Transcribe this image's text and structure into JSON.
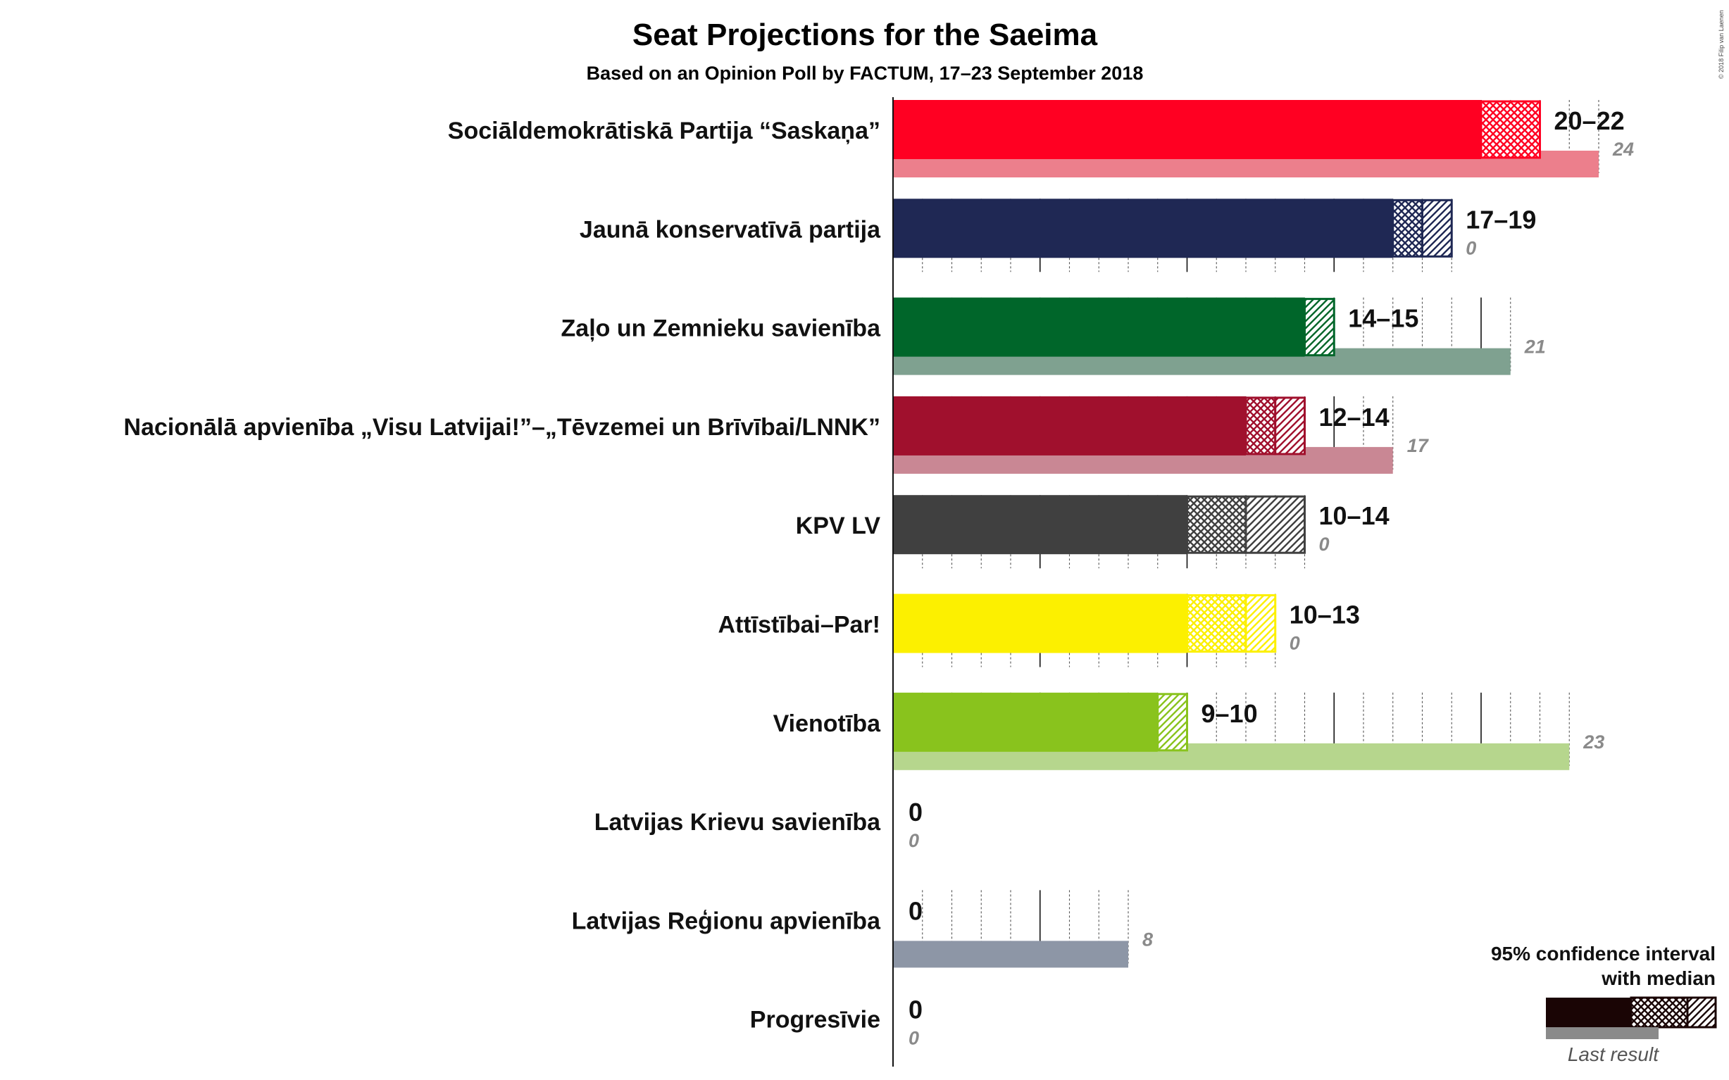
{
  "title": "Seat Projections for the Saeima",
  "subtitle": "Based on an Opinion Poll by FACTUM, 17–23 September 2018",
  "copyright": "© 2018 Filip van Laenen",
  "chart_data": {
    "type": "bar",
    "orientation": "horizontal",
    "title": "Seat Projections for the Saeima",
    "subtitle": "Based on an Opinion Poll by FACTUM, 17–23 September 2018",
    "xlim": [
      0,
      27
    ],
    "grid": true,
    "legend_position": "bottom-right",
    "series": [
      {
        "party": "Sociāldemokrātiskā Partija “Saskaņa”",
        "low": 20,
        "median": 22,
        "high": 22,
        "label": "20–22",
        "last_result": 24,
        "last_label": "24",
        "color": "#FF0022",
        "last_color": "#EC7F8C"
      },
      {
        "party": "Jaunā konservatīvā partija",
        "low": 17,
        "median": 18,
        "high": 19,
        "label": "17–19",
        "last_result": 0,
        "last_label": "0",
        "color": "#1F2854",
        "last_color": "#8F94AA"
      },
      {
        "party": "Zaļo un Zemnieku savienība",
        "low": 14,
        "median": 14,
        "high": 15,
        "label": "14–15",
        "last_result": 21,
        "last_label": "21",
        "color": "#00662A",
        "last_color": "#7FA190"
      },
      {
        "party": "Nacionālā apvienība „Visu Latvijai!”–„Tēvzemei un Brīvībai/LNNK”",
        "low": 12,
        "median": 13,
        "high": 14,
        "label": "12–14",
        "last_result": 17,
        "last_label": "17",
        "color": "#A0102D",
        "last_color": "#C98794"
      },
      {
        "party": "KPV LV",
        "low": 10,
        "median": 12,
        "high": 14,
        "label": "10–14",
        "last_result": 0,
        "last_label": "0",
        "color": "#404040",
        "last_color": "#9F9F9F"
      },
      {
        "party": "Attīstībai–Par!",
        "low": 10,
        "median": 12,
        "high": 13,
        "label": "10–13",
        "last_result": 0,
        "last_label": "0",
        "color": "#FCF000",
        "last_color": "#FDF77F"
      },
      {
        "party": "Vienotība",
        "low": 9,
        "median": 9,
        "high": 10,
        "label": "9–10",
        "last_result": 23,
        "last_label": "23",
        "color": "#89C31D",
        "last_color": "#B6D68D"
      },
      {
        "party": "Latvijas Krievu savienība",
        "low": 0,
        "median": 0,
        "high": 0,
        "label": "0",
        "last_result": 0,
        "last_label": "0",
        "color": "#888888",
        "last_color": "#BBBBBB"
      },
      {
        "party": "Latvijas Reģionu apvienība",
        "low": 0,
        "median": 0,
        "high": 0,
        "label": "0",
        "last_result": 8,
        "last_label": "8",
        "color": "#1C3055",
        "last_color": "#8D96A6"
      },
      {
        "party": "Progresīvie",
        "low": 0,
        "median": 0,
        "high": 0,
        "label": "0",
        "last_result": 0,
        "last_label": "0",
        "color": "#888888",
        "last_color": "#BBBBBB"
      }
    ]
  },
  "legend": {
    "line1": "95% confidence interval",
    "line2": "with median",
    "last_result": "Last result"
  }
}
